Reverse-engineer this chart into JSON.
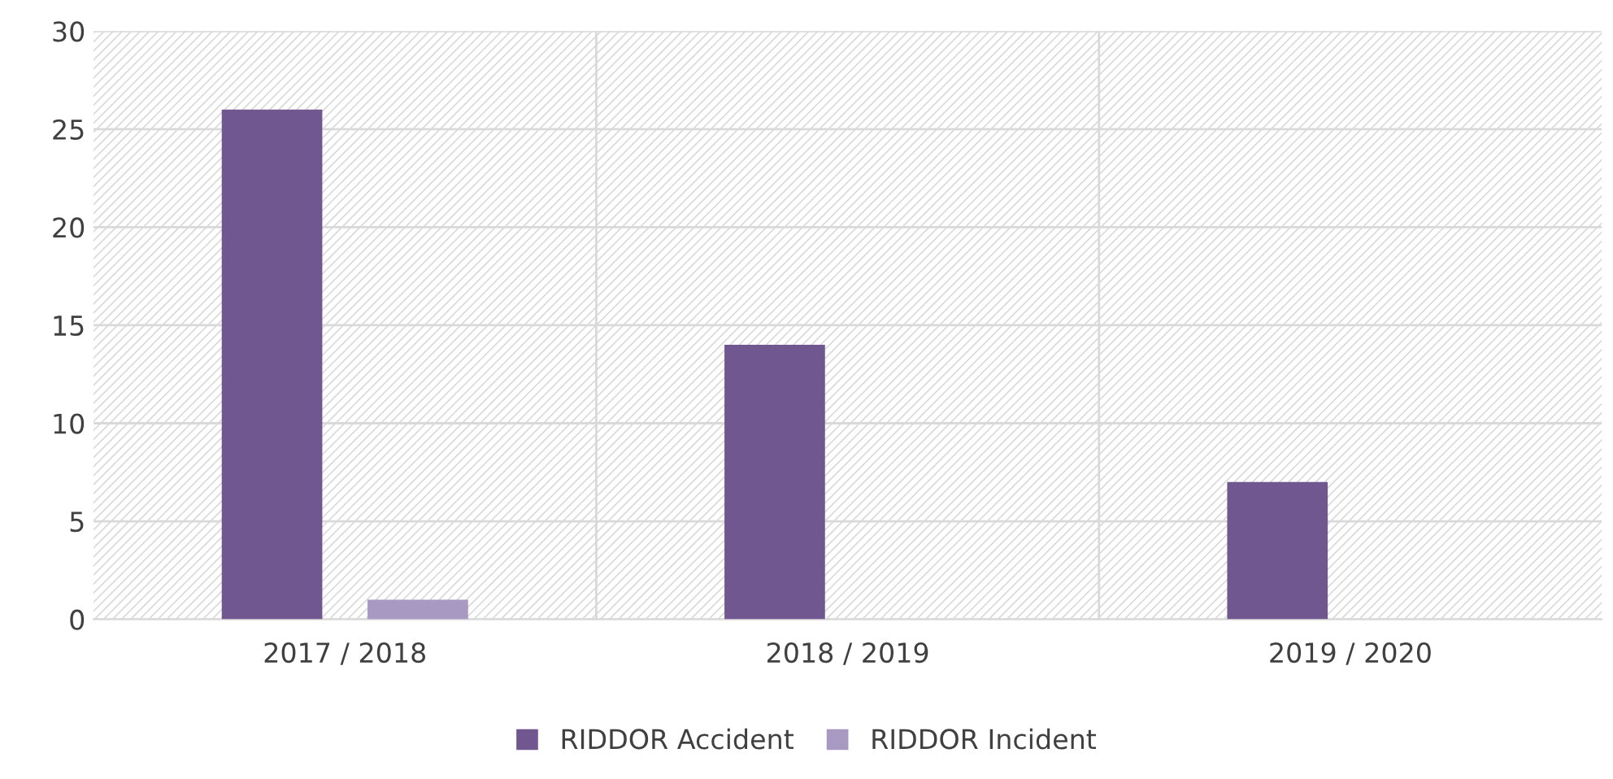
{
  "chart_data": {
    "type": "bar",
    "categories": [
      "2017 / 2018",
      "2018 / 2019",
      "2019 / 2020"
    ],
    "series": [
      {
        "name": "RIDDOR Accident",
        "color": "#70578f",
        "values": [
          26,
          14,
          7
        ]
      },
      {
        "name": "RIDDOR Incident",
        "color": "#a899c2",
        "values": [
          1,
          0,
          0
        ]
      }
    ],
    "ylim": [
      0,
      30
    ],
    "yticks": [
      0,
      5,
      10,
      15,
      20,
      25,
      30
    ],
    "grid": true,
    "legend": "bottom"
  }
}
